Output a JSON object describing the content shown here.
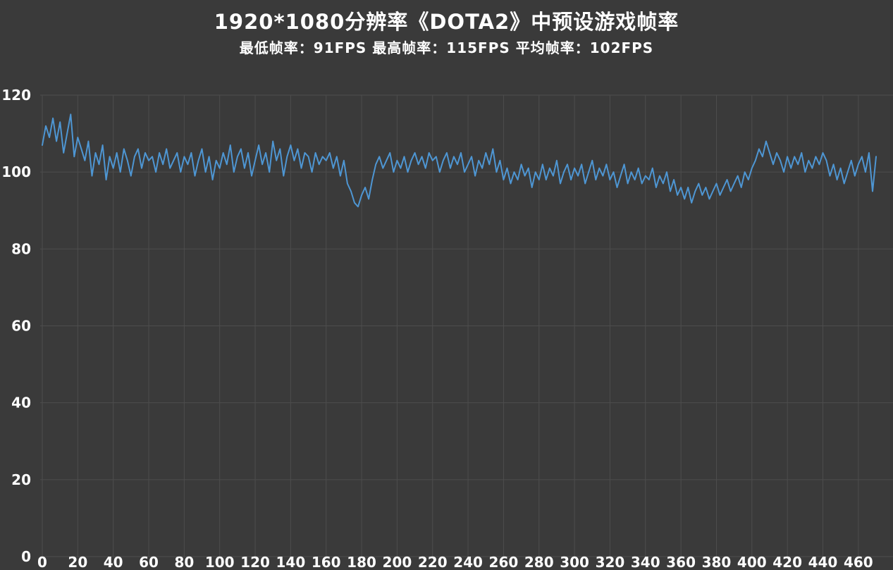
{
  "chart_data": {
    "type": "line",
    "title": "1920*1080分辨率《DOTA2》中预设游戏帧率",
    "subtitle": "最低帧率：91FPS  最高帧率：115FPS 平均帧率：102FPS",
    "stats": {
      "min_fps": "91FPS",
      "max_fps": "115FPS",
      "avg_fps": "102FPS"
    },
    "xlabel": "",
    "ylabel": "",
    "xlim": [
      0,
      470
    ],
    "ylim": [
      0,
      120
    ],
    "x_ticks": [
      0,
      20,
      40,
      60,
      80,
      100,
      120,
      140,
      160,
      180,
      200,
      220,
      240,
      260,
      280,
      300,
      320,
      340,
      360,
      380,
      400,
      420,
      440,
      460
    ],
    "y_ticks": [
      0,
      20,
      40,
      60,
      80,
      100,
      120
    ],
    "grid": true,
    "legend": "none",
    "colors": {
      "background": "#3a3a3a",
      "grid": "#4d4d4d",
      "line": "#4e96d3",
      "text": "#ffffff"
    },
    "series": [
      {
        "name": "FPS",
        "x_start": 0,
        "x_step": 2,
        "values": [
          107,
          112,
          109,
          114,
          108,
          113,
          105,
          110,
          115,
          104,
          109,
          106,
          103,
          108,
          99,
          105,
          102,
          107,
          98,
          104,
          101,
          105,
          100,
          106,
          103,
          99,
          104,
          106,
          101,
          105,
          103,
          104,
          100,
          105,
          102,
          106,
          101,
          103,
          105,
          100,
          104,
          102,
          105,
          99,
          103,
          106,
          100,
          104,
          98,
          103,
          101,
          105,
          102,
          107,
          100,
          104,
          106,
          101,
          105,
          99,
          103,
          107,
          102,
          105,
          100,
          108,
          103,
          106,
          99,
          104,
          107,
          103,
          106,
          101,
          105,
          104,
          100,
          105,
          102,
          104,
          103,
          105,
          101,
          104,
          99,
          103,
          97,
          95,
          92,
          91,
          94,
          96,
          93,
          98,
          102,
          104,
          101,
          103,
          105,
          100,
          103,
          101,
          104,
          100,
          103,
          105,
          102,
          104,
          101,
          105,
          103,
          104,
          100,
          103,
          105,
          101,
          104,
          102,
          105,
          100,
          102,
          104,
          99,
          103,
          101,
          105,
          102,
          106,
          100,
          103,
          98,
          101,
          97,
          100,
          98,
          102,
          99,
          101,
          96,
          100,
          98,
          102,
          98,
          101,
          99,
          103,
          97,
          100,
          102,
          98,
          101,
          99,
          102,
          97,
          100,
          103,
          98,
          101,
          99,
          102,
          98,
          100,
          96,
          99,
          102,
          97,
          100,
          98,
          101,
          97,
          99,
          98,
          101,
          96,
          99,
          97,
          100,
          95,
          98,
          94,
          96,
          93,
          96,
          92,
          95,
          97,
          94,
          96,
          93,
          95,
          97,
          94,
          96,
          98,
          95,
          97,
          99,
          96,
          100,
          98,
          101,
          103,
          106,
          104,
          108,
          105,
          102,
          105,
          103,
          100,
          104,
          101,
          104,
          102,
          105,
          100,
          103,
          101,
          104,
          102,
          105,
          103,
          99,
          102,
          98,
          101,
          97,
          100,
          103,
          99,
          102,
          104,
          100,
          105,
          95,
          104
        ]
      }
    ]
  }
}
